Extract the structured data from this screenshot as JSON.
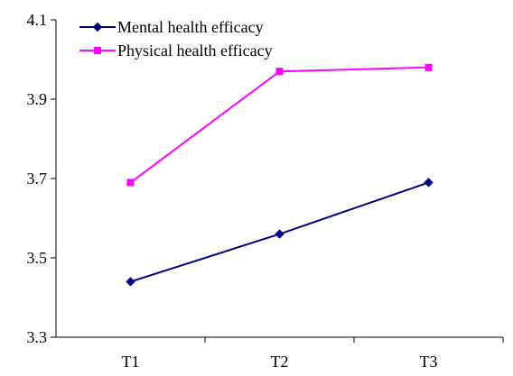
{
  "chart_data": {
    "type": "line",
    "categories": [
      "T1",
      "T2",
      "T3"
    ],
    "ylim": [
      3.3,
      4.1
    ],
    "yticks": [
      "3.3",
      "3.5",
      "3.7",
      "3.9",
      "4.1"
    ],
    "grid": false,
    "legend_position": "top-left",
    "series": [
      {
        "name": "Mental health efficacy",
        "values": [
          3.44,
          3.56,
          3.69
        ],
        "color": "#000080",
        "marker": "diamond"
      },
      {
        "name": "Physical health efficacy",
        "values": [
          3.69,
          3.97,
          3.98
        ],
        "color": "#FF00FF",
        "marker": "square"
      }
    ]
  }
}
